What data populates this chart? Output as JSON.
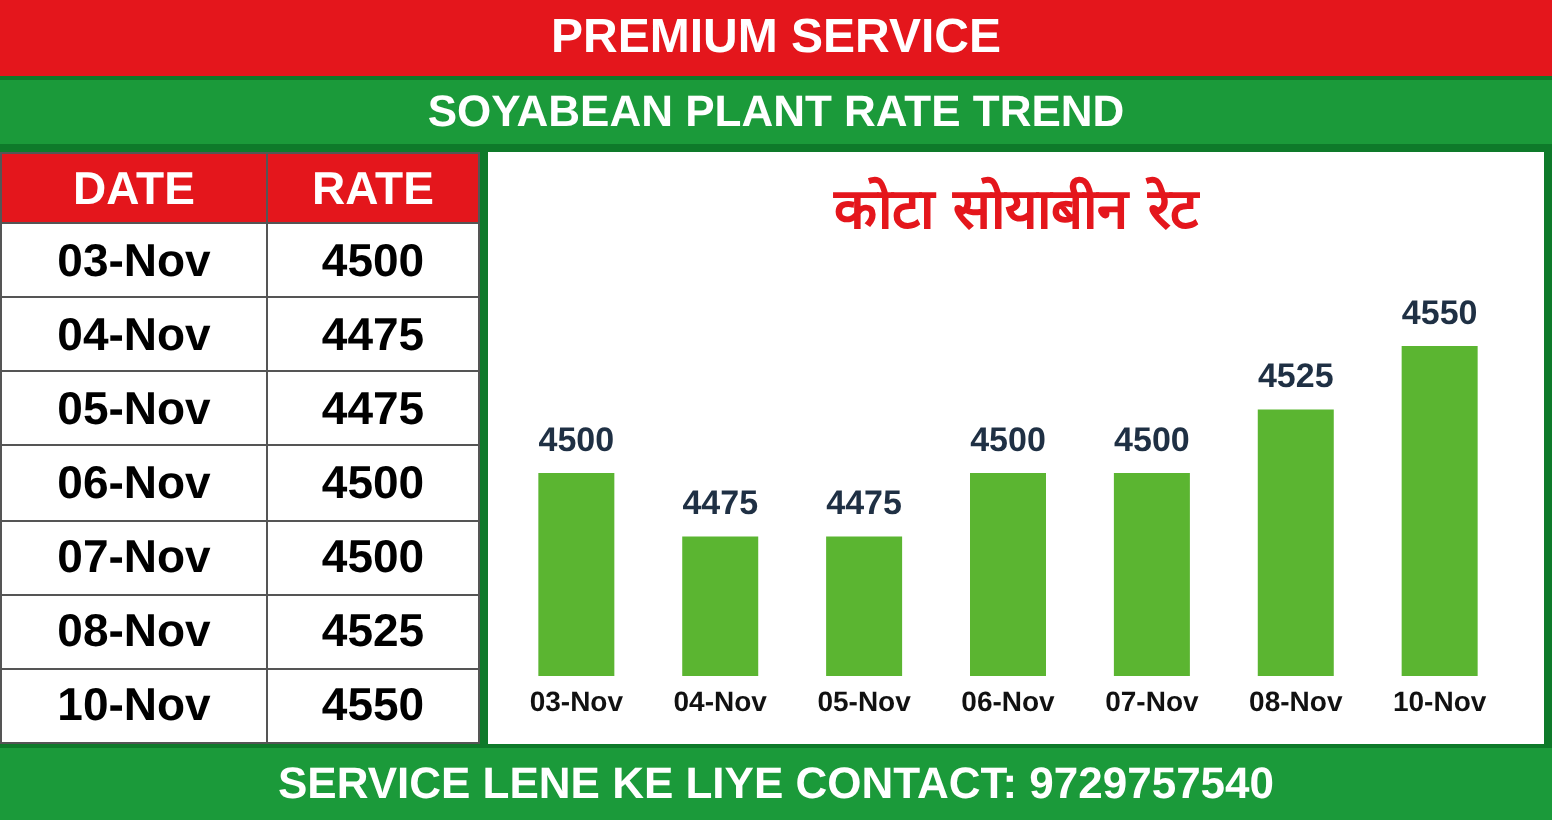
{
  "chart_data": {
    "type": "bar",
    "title": "PREMIUM SERVICE",
    "subtitle": "SOYABEAN PLANT RATE TREND",
    "annotations": [
      "कोटा सोयाबीन रेट",
      "DATE",
      "RATE",
      "SERVICE LENE KE LIYE CONTACT: 9729757540",
      "4500",
      "4475",
      "4475",
      "4500",
      "4500",
      "4525",
      "4550"
    ],
    "categories": [
      "03-Nov",
      "04-Nov",
      "05-Nov",
      "06-Nov",
      "07-Nov",
      "08-Nov",
      "10-Nov"
    ],
    "values": [
      4500,
      4475,
      4475,
      4500,
      4500,
      4525,
      4550
    ],
    "color": "#5bb531",
    "ylim": [
      4420,
      4550
    ],
    "data_labels": true
  }
}
